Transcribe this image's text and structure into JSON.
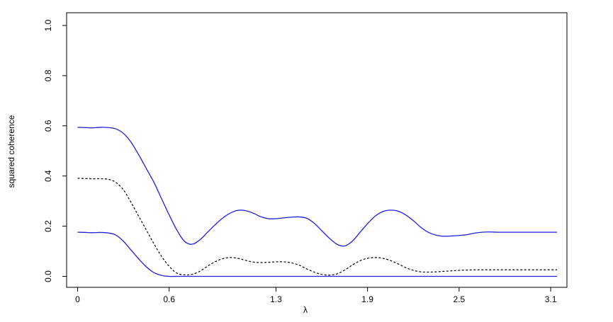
{
  "chart_data": {
    "type": "line",
    "title": "",
    "xlabel": "λ",
    "ylabel": "squared coherence",
    "xlim": [
      0.0,
      3.1416
    ],
    "ylim": [
      0.0,
      1.0
    ],
    "x_ticks": [
      0.0,
      0.6,
      1.3,
      1.9,
      2.5,
      3.1
    ],
    "x_tick_labels": [
      "0",
      "0.6",
      "1.3",
      "1.9",
      "2.5",
      "3.1"
    ],
    "y_ticks": [
      0.0,
      0.2,
      0.4,
      0.6,
      0.8,
      1.0
    ],
    "y_tick_labels": [
      "0.0",
      "0.2",
      "0.4",
      "0.6",
      "0.8",
      "1.0"
    ],
    "grid": false,
    "legend": "none",
    "colors": {
      "band": "#1f1fdc",
      "estimate": "#000000",
      "axis": "#000000"
    },
    "series": [
      {
        "style": "solid",
        "color": "#1f1fdc",
        "x": [
          0.0,
          0.05,
          0.1,
          0.15,
          0.2,
          0.25,
          0.3,
          0.35,
          0.4,
          0.45,
          0.5,
          0.55,
          0.6,
          0.65,
          0.7,
          0.75,
          0.8,
          0.85,
          0.9,
          0.95,
          1.0,
          1.05,
          1.1,
          1.15,
          1.2,
          1.25,
          1.3,
          1.35,
          1.4,
          1.45,
          1.5,
          1.55,
          1.6,
          1.65,
          1.7,
          1.75,
          1.8,
          1.85,
          1.9,
          1.95,
          2.0,
          2.05,
          2.1,
          2.15,
          2.2,
          2.25,
          2.3,
          2.35,
          2.4,
          2.45,
          2.5,
          2.55,
          2.6,
          2.65,
          2.7,
          2.75,
          2.8,
          2.85,
          2.9,
          2.95,
          3.0,
          3.05,
          3.1,
          3.1416
        ],
        "y": [
          0.594,
          0.593,
          0.592,
          0.594,
          0.593,
          0.588,
          0.57,
          0.535,
          0.485,
          0.43,
          0.375,
          0.31,
          0.245,
          0.185,
          0.14,
          0.128,
          0.145,
          0.175,
          0.205,
          0.232,
          0.252,
          0.263,
          0.262,
          0.252,
          0.238,
          0.23,
          0.23,
          0.233,
          0.236,
          0.237,
          0.232,
          0.212,
          0.182,
          0.152,
          0.128,
          0.121,
          0.14,
          0.175,
          0.21,
          0.24,
          0.258,
          0.264,
          0.26,
          0.245,
          0.222,
          0.195,
          0.175,
          0.164,
          0.16,
          0.161,
          0.163,
          0.166,
          0.172,
          0.176,
          0.177,
          0.176,
          0.176,
          0.176,
          0.176,
          0.176,
          0.176,
          0.176,
          0.176,
          0.176
        ]
      },
      {
        "style": "dashed",
        "color": "#000000",
        "x": [
          0.0,
          0.05,
          0.1,
          0.15,
          0.2,
          0.25,
          0.3,
          0.35,
          0.4,
          0.45,
          0.5,
          0.55,
          0.6,
          0.65,
          0.7,
          0.75,
          0.8,
          0.85,
          0.9,
          0.95,
          1.0,
          1.05,
          1.1,
          1.15,
          1.2,
          1.25,
          1.3,
          1.35,
          1.4,
          1.45,
          1.5,
          1.55,
          1.6,
          1.65,
          1.7,
          1.75,
          1.8,
          1.85,
          1.9,
          1.95,
          2.0,
          2.05,
          2.1,
          2.15,
          2.2,
          2.25,
          2.3,
          2.35,
          2.4,
          2.45,
          2.5,
          2.55,
          2.6,
          2.65,
          2.7,
          2.75,
          2.8,
          2.85,
          2.9,
          2.95,
          3.0,
          3.05,
          3.1,
          3.1416
        ],
        "y": [
          0.391,
          0.39,
          0.389,
          0.389,
          0.387,
          0.375,
          0.345,
          0.295,
          0.24,
          0.185,
          0.13,
          0.08,
          0.04,
          0.013,
          0.006,
          0.008,
          0.02,
          0.04,
          0.058,
          0.07,
          0.075,
          0.072,
          0.064,
          0.057,
          0.055,
          0.056,
          0.058,
          0.058,
          0.054,
          0.045,
          0.03,
          0.017,
          0.008,
          0.005,
          0.01,
          0.025,
          0.045,
          0.062,
          0.072,
          0.075,
          0.072,
          0.063,
          0.05,
          0.035,
          0.024,
          0.018,
          0.017,
          0.018,
          0.02,
          0.022,
          0.024,
          0.025,
          0.026,
          0.026,
          0.026,
          0.026,
          0.026,
          0.026,
          0.026,
          0.026,
          0.026,
          0.026,
          0.026,
          0.026
        ]
      },
      {
        "style": "solid",
        "color": "#1f1fdc",
        "x": [
          0.0,
          0.05,
          0.1,
          0.15,
          0.2,
          0.25,
          0.3,
          0.35,
          0.4,
          0.45,
          0.5,
          0.55,
          0.6,
          0.65,
          0.7,
          0.8,
          1.0,
          1.5,
          2.0,
          2.5,
          3.0,
          3.1416
        ],
        "y": [
          0.176,
          0.175,
          0.174,
          0.175,
          0.173,
          0.165,
          0.14,
          0.105,
          0.07,
          0.038,
          0.015,
          0.004,
          0.0,
          0.0,
          0.0,
          0.0,
          0.0,
          0.0,
          0.0,
          0.0,
          0.0,
          0.0
        ]
      }
    ]
  }
}
